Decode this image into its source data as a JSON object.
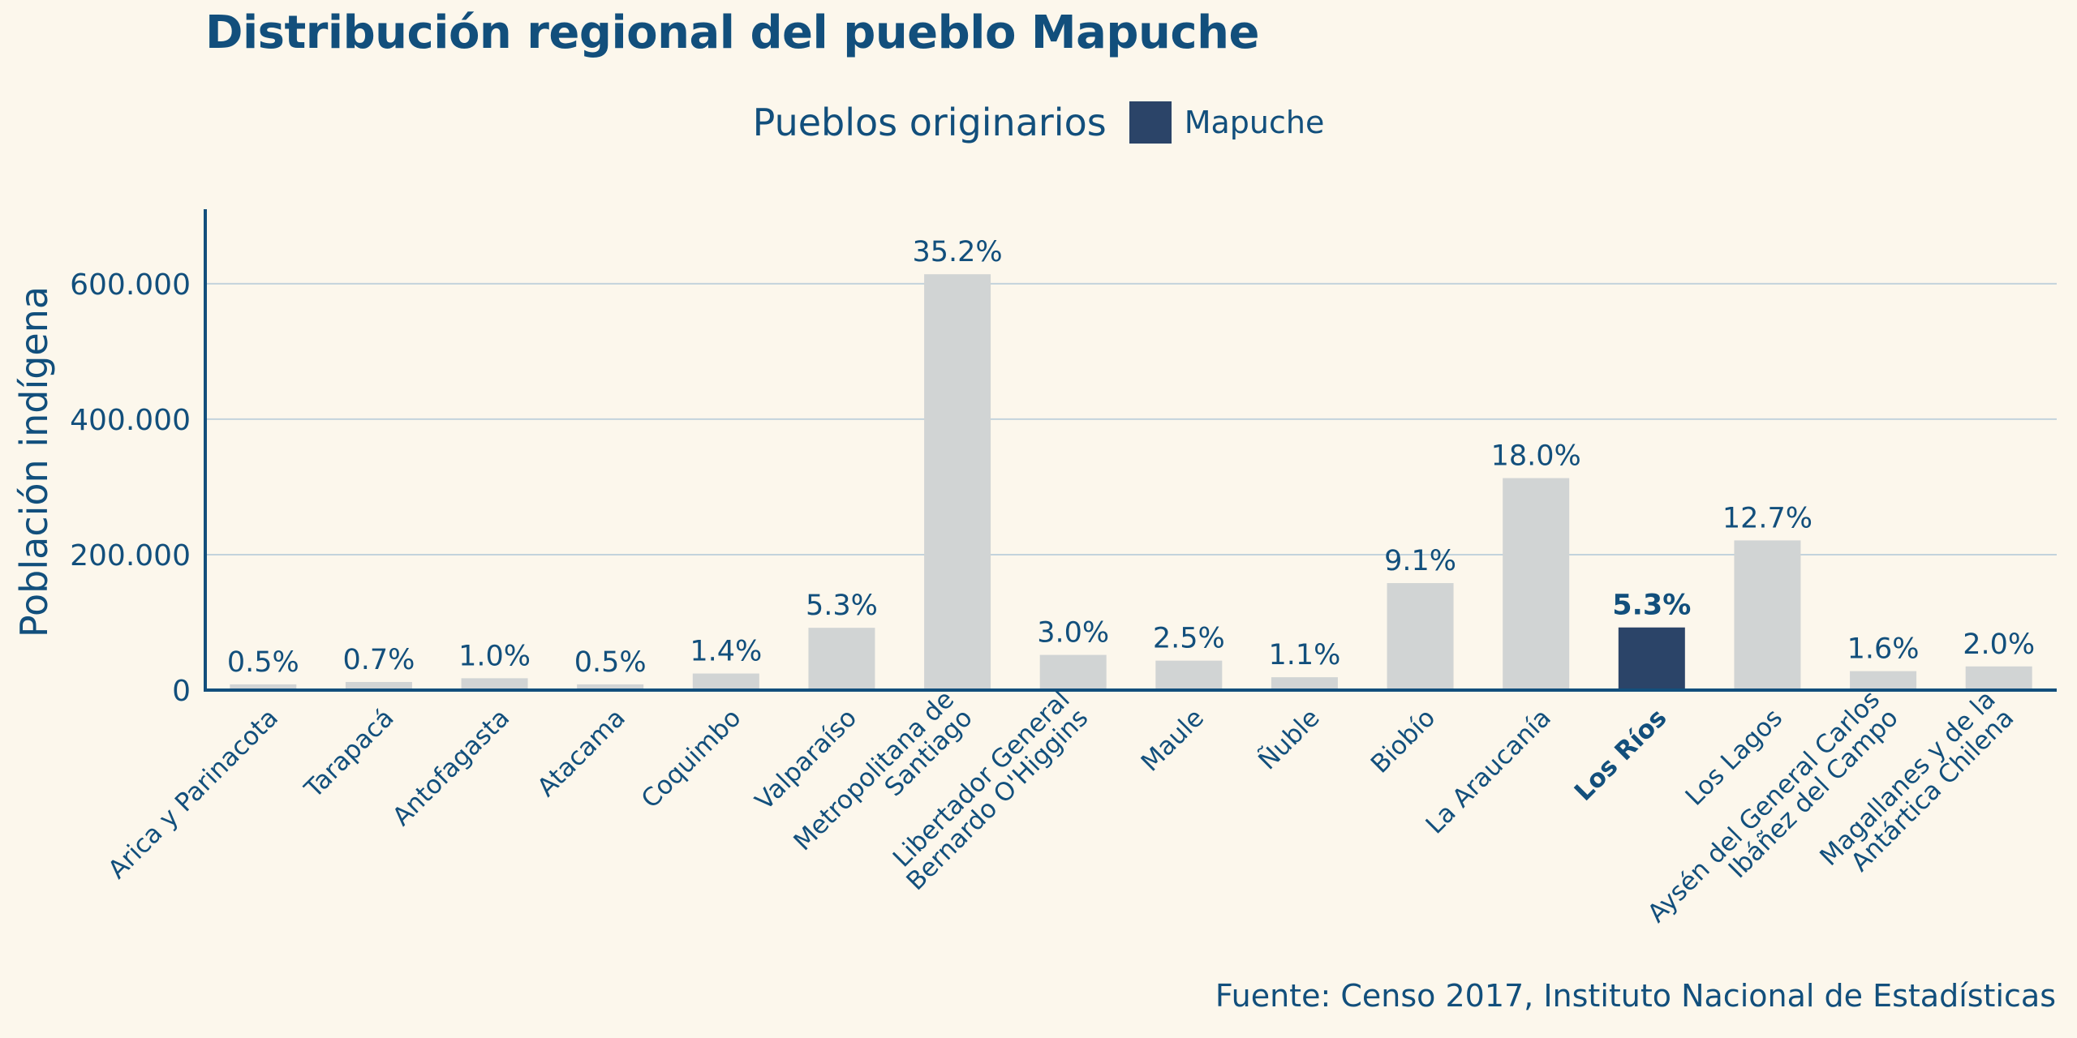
{
  "title": "Distribución regional del pueblo Mapuche",
  "caption": "Fuente: Censo 2017, Instituto Nacional de Estadísticas",
  "legend": {
    "title": "Pueblos originarios",
    "items": [
      {
        "label": "Mapuche",
        "color": "#2b4468"
      }
    ]
  },
  "colors": {
    "text": "#124f7c",
    "bar_default": "#d1d4d4",
    "bar_highlight": "#2b4468",
    "grid": "#c3d3dc",
    "axis": "#124f7c",
    "background": "#fcf7ec"
  },
  "chart_data": {
    "type": "bar",
    "ylabel": "Población indígena",
    "xlabel": "",
    "ylim": [
      0,
      710000
    ],
    "yticks": [
      0,
      200000,
      400000,
      600000
    ],
    "ytick_labels": [
      "0",
      "200.000",
      "400.000",
      "600.000"
    ],
    "grid": "horizontal",
    "highlight": "Los Ríos",
    "categories": [
      [
        "Arica y Parinacota"
      ],
      [
        "Tarapacá"
      ],
      [
        "Antofagasta"
      ],
      [
        "Atacama"
      ],
      [
        "Coquimbo"
      ],
      [
        "Valparaíso"
      ],
      [
        "Metropolitana de",
        "Santiago"
      ],
      [
        "Libertador General",
        "Bernardo O'Higgins"
      ],
      [
        "Maule"
      ],
      [
        "Ñuble"
      ],
      [
        "Biobío"
      ],
      [
        "La Araucanía"
      ],
      [
        "Los Ríos"
      ],
      [
        "Los Lagos"
      ],
      [
        "Aysén del General Carlos",
        "Ibáñez del Campo"
      ],
      [
        "Magallanes y de la",
        "Antártica Chilena"
      ]
    ],
    "values": [
      8500,
      12000,
      17500,
      8500,
      24500,
      92000,
      614000,
      52000,
      43500,
      19000,
      158000,
      313000,
      92500,
      221000,
      28000,
      35000
    ],
    "labels": [
      "0.5%",
      "0.7%",
      "1.0%",
      "0.5%",
      "1.4%",
      "5.3%",
      "35.2%",
      "3.0%",
      "2.5%",
      "1.1%",
      "9.1%",
      "18.0%",
      "5.3%",
      "12.7%",
      "1.6%",
      "2.0%"
    ]
  }
}
